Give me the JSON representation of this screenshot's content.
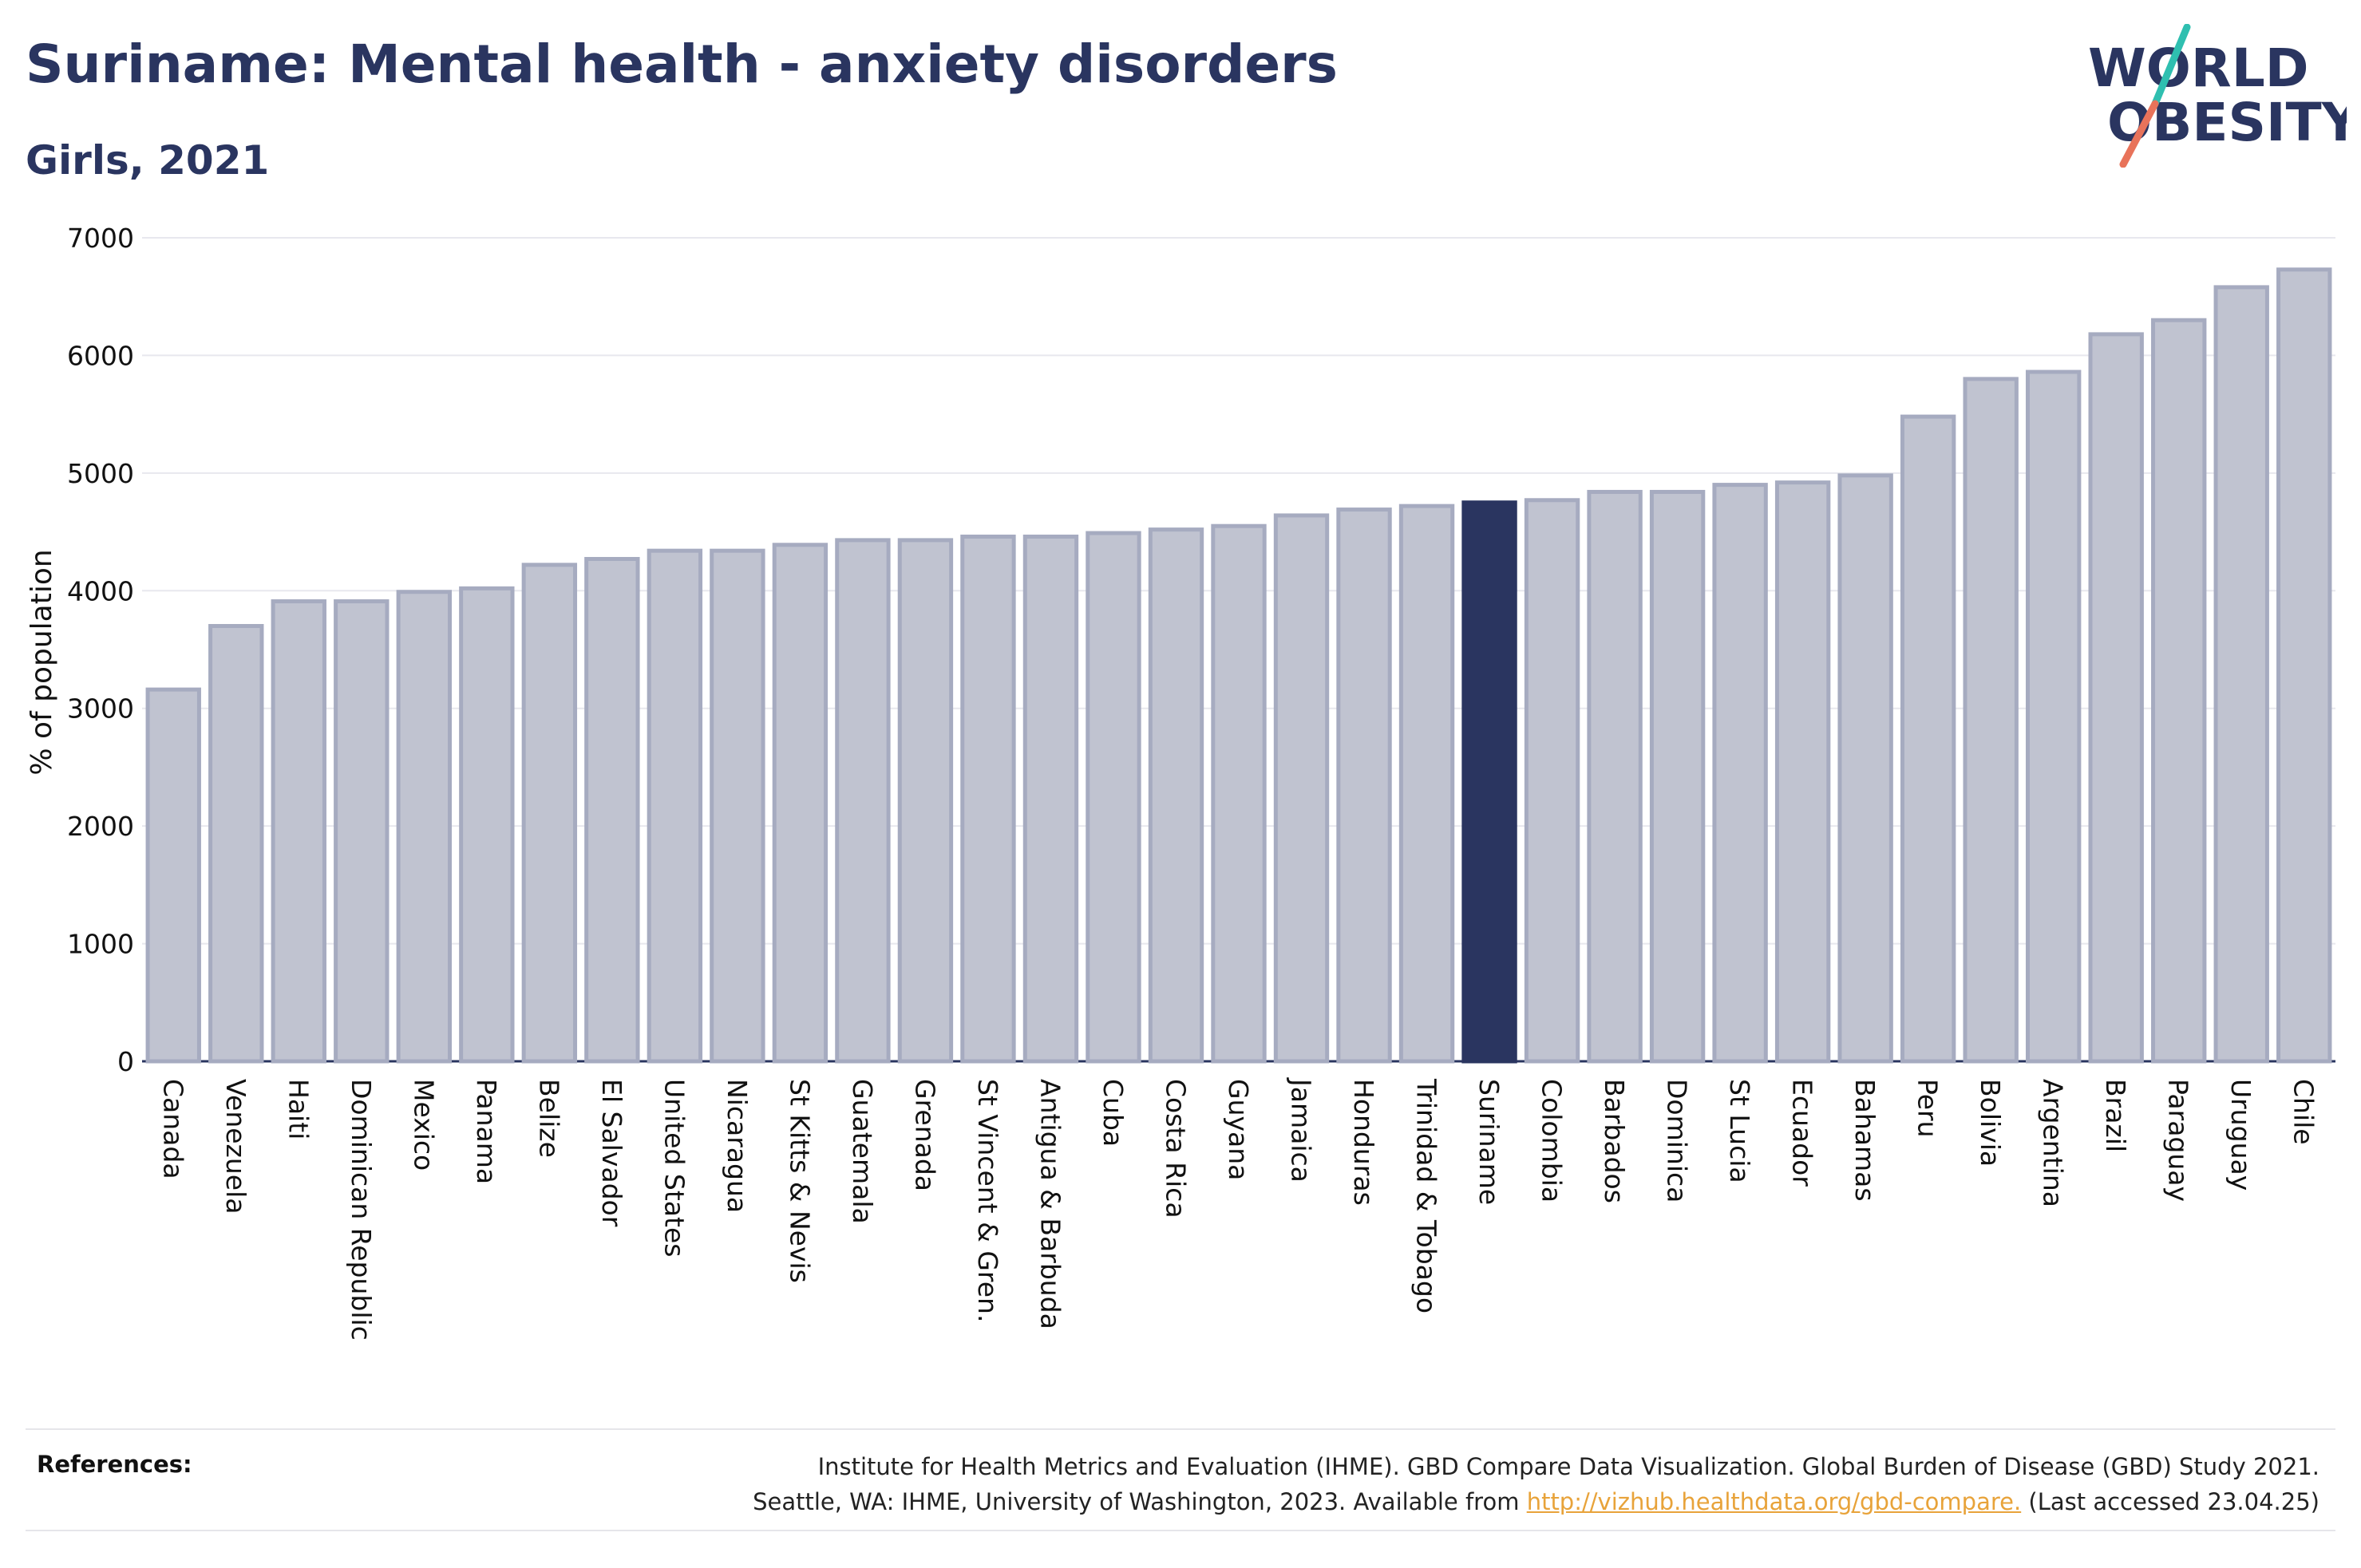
{
  "header": {
    "title": "Suriname: Mental health - anxiety disorders",
    "subtitle": "Girls, 2021"
  },
  "logo": {
    "line1": "WORLD",
    "line2": "OBESITY",
    "text_color": "#2a3560",
    "slash_colors": [
      "#2fbfb0",
      "#e8735a"
    ]
  },
  "colors": {
    "bar_default": "#c0c3d0",
    "bar_default_stroke": "#a6abc0",
    "bar_highlight": "#2a3560",
    "grid": "#e8e8ee",
    "axis": "#2a3560"
  },
  "chart_data": {
    "type": "bar",
    "title": "Suriname: Mental health - anxiety disorders",
    "subtitle": "Girls, 2021",
    "xlabel": "",
    "ylabel": "% of population",
    "ylim": [
      0,
      7000
    ],
    "yticks": [
      0,
      1000,
      2000,
      3000,
      4000,
      5000,
      6000,
      7000
    ],
    "grid": true,
    "highlight": "Suriname",
    "categories": [
      "Canada",
      "Venezuela",
      "Haiti",
      "Dominican Republic",
      "Mexico",
      "Panama",
      "Belize",
      "El Salvador",
      "United States",
      "Nicaragua",
      "St Kitts & Nevis",
      "Guatemala",
      "Grenada",
      "St Vincent & Gren.",
      "Antigua & Barbuda",
      "Cuba",
      "Costa Rica",
      "Guyana",
      "Jamaica",
      "Honduras",
      "Trinidad & Tobago",
      "Suriname",
      "Colombia",
      "Barbados",
      "Dominica",
      "St Lucia",
      "Ecuador",
      "Bahamas",
      "Peru",
      "Bolivia",
      "Argentina",
      "Brazil",
      "Paraguay",
      "Uruguay",
      "Chile"
    ],
    "values": [
      3160,
      3700,
      3910,
      3910,
      3990,
      4020,
      4220,
      4270,
      4340,
      4340,
      4390,
      4430,
      4430,
      4460,
      4460,
      4490,
      4520,
      4550,
      4640,
      4690,
      4720,
      4750,
      4770,
      4840,
      4840,
      4900,
      4920,
      4980,
      5480,
      5800,
      5860,
      6180,
      6300,
      6580,
      6730
    ]
  },
  "references": {
    "label": "References:",
    "line1": "Institute for Health Metrics and Evaluation (IHME). GBD Compare Data Visualization. Global Burden of Disease (GBD) Study 2021.",
    "line2_prefix": "Seattle, WA: IHME, University of Washington, 2023. Available from ",
    "link": "http://vizhub.healthdata.org/gbd-compare.",
    "line2_suffix": " (Last accessed 23.04.25)"
  }
}
